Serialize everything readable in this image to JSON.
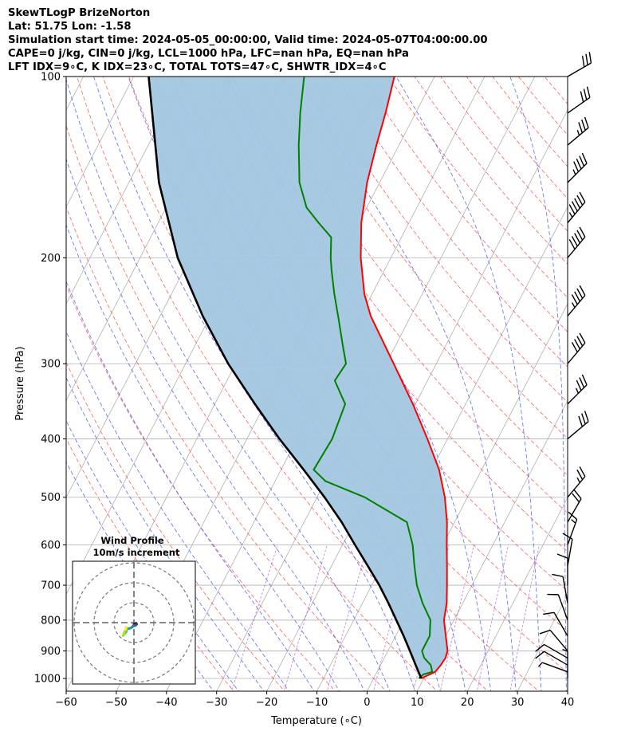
{
  "header": {
    "lines": [
      "SkewTLogP BrizeNorton",
      "Lat: 51.75   Lon: -1.58",
      "Simulation start time: 2024-05-05_00:00:00, Valid time: 2024-05-07T04:00:00.00",
      "CAPE=0 j/kg, CIN=0 j/kg, LCL=1000 hPa, LFC=nan hPa, EQ=nan hPa",
      "LFT IDX=9∘C, K IDX=23∘C, TOTAL TOTS=47∘C, SHWTR_IDX=4∘C"
    ]
  },
  "chart_data": {
    "type": "line",
    "xlabel": "Temperature (∘C)",
    "ylabel": "Pressure (hPa)",
    "xlim": [
      -60,
      40
    ],
    "ylim": [
      1050,
      100
    ],
    "yscale": "log",
    "x_ticks": [
      "−60",
      "−50",
      "−40",
      "−30",
      "−20",
      "−10",
      "0",
      "10",
      "20",
      "30",
      "40"
    ],
    "x_tick_values": [
      -60,
      -50,
      -40,
      -30,
      -20,
      -10,
      0,
      10,
      20,
      30,
      40
    ],
    "y_ticks": [
      "1000",
      "900",
      "800",
      "700",
      "600",
      "500",
      "400",
      "300",
      "200",
      "100"
    ],
    "y_tick_values": [
      1000,
      900,
      800,
      700,
      600,
      500,
      400,
      300,
      200,
      100
    ],
    "grid": true,
    "skew": true,
    "background_lines": [
      "isotherms",
      "dry adiabats",
      "moist adiabats",
      "mixing ratio"
    ],
    "series": [
      {
        "key": "temperature",
        "color": "#ff0000",
        "p": [
          1000,
          975,
          950,
          925,
          900,
          850,
          800,
          750,
          700,
          650,
          600,
          550,
          500,
          450,
          400,
          350,
          300,
          250,
          230,
          200,
          175,
          150,
          130,
          115,
          100
        ],
        "temp": [
          9.5,
          11.6,
          12.0,
          12.2,
          11.9,
          10.0,
          8.0,
          6.8,
          5.0,
          3.0,
          0.8,
          -1.5,
          -4.5,
          -8.5,
          -14.0,
          -20.5,
          -28.5,
          -38.0,
          -41.5,
          -46.0,
          -49.5,
          -52.5,
          -54.5,
          -56.0,
          -58.0
        ]
      },
      {
        "key": "dewpoint",
        "color": "#008000",
        "p": [
          1000,
          985,
          975,
          950,
          925,
          900,
          850,
          800,
          750,
          700,
          650,
          600,
          550,
          500,
          470,
          450,
          400,
          350,
          320,
          300,
          280,
          250,
          230,
          210,
          200,
          185,
          175,
          165,
          150,
          130,
          115,
          100
        ],
        "temp": [
          9.0,
          9.5,
          11.0,
          10.0,
          8.0,
          6.8,
          6.8,
          5.3,
          2.0,
          -1.0,
          -3.5,
          -6.0,
          -9.5,
          -20.5,
          -30.0,
          -33.5,
          -33.0,
          -34.0,
          -38.5,
          -38.0,
          -40.5,
          -44.5,
          -47.5,
          -50.5,
          -52.0,
          -54.0,
          -58.0,
          -62.0,
          -66.0,
          -70.0,
          -73.0,
          -76.0
        ]
      },
      {
        "key": "parcel",
        "color": "#000000",
        "p": [
          1000,
          950,
          900,
          850,
          800,
          750,
          700,
          650,
          600,
          550,
          500,
          450,
          400,
          350,
          300,
          250,
          200,
          150,
          100
        ],
        "temp": [
          9.5,
          7.0,
          4.4,
          1.6,
          -1.5,
          -4.8,
          -8.5,
          -12.8,
          -17.5,
          -22.5,
          -28.5,
          -35.5,
          -43.5,
          -52.0,
          -61.5,
          -71.5,
          -82.5,
          -94.0,
          -107.0
        ]
      }
    ],
    "shading": {
      "between": [
        "temperature",
        "parcel"
      ],
      "color": "#a3c6e0"
    },
    "wind_barbs": {
      "p": [
        1000,
        975,
        950,
        925,
        900,
        850,
        800,
        750,
        700,
        650,
        600,
        550,
        500,
        400,
        350,
        300,
        250,
        200,
        175,
        150,
        130,
        115,
        100
      ],
      "speed_kt": [
        5,
        8,
        10,
        10,
        10,
        10,
        10,
        10,
        10,
        10,
        15,
        20,
        25,
        30,
        35,
        40,
        45,
        50,
        55,
        45,
        35,
        30,
        30
      ],
      "dir_deg": [
        0,
        290,
        300,
        300,
        320,
        330,
        340,
        350,
        0,
        10,
        20,
        30,
        40,
        50,
        45,
        40,
        40,
        40,
        40,
        45,
        50,
        55,
        60
      ]
    },
    "inset": {
      "title": "Wind Profile",
      "subtitle": "10m/s increment",
      "rings_ms": [
        10,
        20,
        30
      ]
    }
  }
}
